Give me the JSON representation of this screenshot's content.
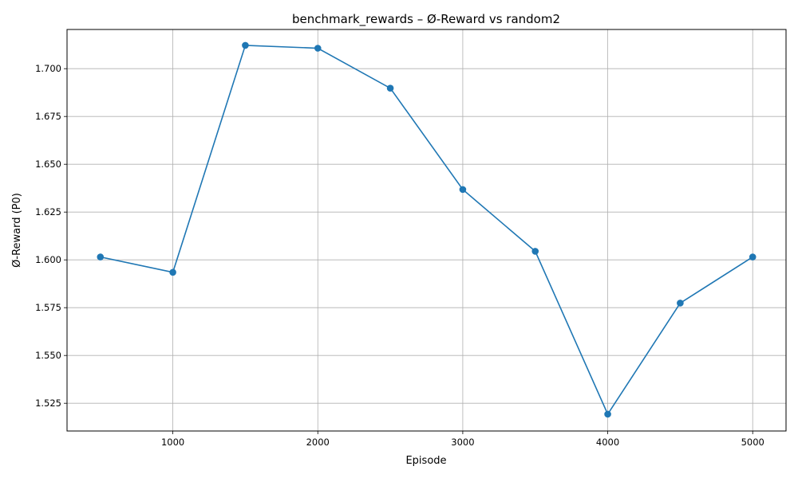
{
  "chart_data": {
    "type": "line",
    "title": "benchmark_rewards – Ø-Reward vs random2",
    "xlabel": "Episode",
    "ylabel": "Ø-Reward (P0)",
    "x": [
      500,
      1000,
      1500,
      2000,
      2500,
      3000,
      3500,
      4000,
      4500,
      5000
    ],
    "series": [
      {
        "values": [
          1.6015,
          1.5935,
          1.7122,
          1.7107,
          1.6898,
          1.6368,
          1.6045,
          1.5193,
          1.5774,
          1.6015
        ],
        "color": "#1f77b4",
        "marker": "circle"
      }
    ],
    "xlim": [
      270,
      5230
    ],
    "ylim": [
      1.5105,
      1.7205
    ],
    "xticks": [
      1000,
      2000,
      3000,
      4000,
      5000
    ],
    "xtick_labels": [
      "1000",
      "2000",
      "3000",
      "4000",
      "5000"
    ],
    "yticks": [
      1.525,
      1.55,
      1.575,
      1.6,
      1.625,
      1.65,
      1.675,
      1.7
    ],
    "ytick_labels": [
      "1.525",
      "1.550",
      "1.575",
      "1.600",
      "1.625",
      "1.650",
      "1.675",
      "1.700"
    ],
    "grid": true,
    "legend": "none"
  }
}
